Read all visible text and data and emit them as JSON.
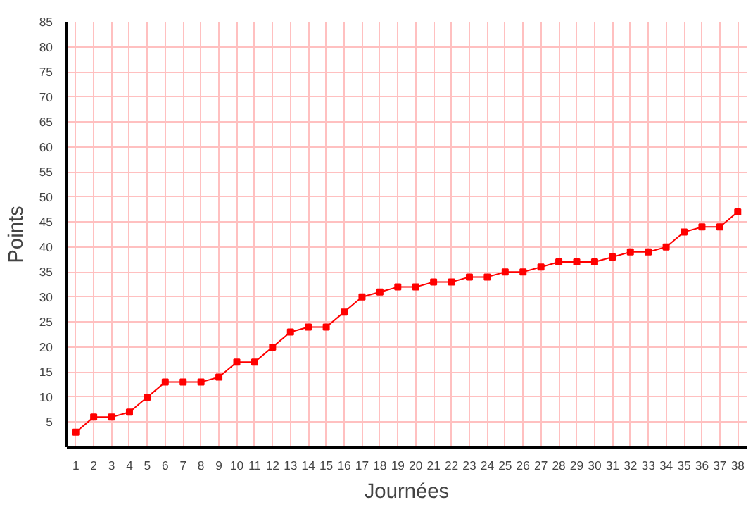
{
  "chart_data": {
    "type": "line",
    "xlabel": "Journées",
    "ylabel": "Points",
    "x": [
      1,
      2,
      3,
      4,
      5,
      6,
      7,
      8,
      9,
      10,
      11,
      12,
      13,
      14,
      15,
      16,
      17,
      18,
      19,
      20,
      21,
      22,
      23,
      24,
      25,
      26,
      27,
      28,
      29,
      30,
      31,
      32,
      33,
      34,
      35,
      36,
      37,
      38
    ],
    "series": [
      {
        "color": "#ff0000",
        "values": [
          3,
          6,
          6,
          7,
          10,
          13,
          13,
          13,
          14,
          17,
          17,
          20,
          23,
          24,
          24,
          27,
          30,
          31,
          32,
          32,
          33,
          33,
          34,
          34,
          35,
          35,
          36,
          37,
          37,
          37,
          38,
          39,
          39,
          40,
          43,
          44,
          44,
          47
        ]
      }
    ],
    "xlim": [
      0.5,
      38.5
    ],
    "xticks": [
      1,
      2,
      3,
      4,
      5,
      6,
      7,
      8,
      9,
      10,
      11,
      12,
      13,
      14,
      15,
      16,
      17,
      18,
      19,
      20,
      21,
      22,
      23,
      24,
      25,
      26,
      27,
      28,
      29,
      30,
      31,
      32,
      33,
      34,
      35,
      36,
      37,
      38
    ],
    "ylim": [
      0,
      85
    ],
    "yticks": [
      5,
      10,
      15,
      20,
      25,
      30,
      35,
      40,
      45,
      50,
      55,
      60,
      65,
      70,
      75,
      80,
      85
    ],
    "grid": true,
    "marker": "square",
    "line_style": "solid"
  }
}
